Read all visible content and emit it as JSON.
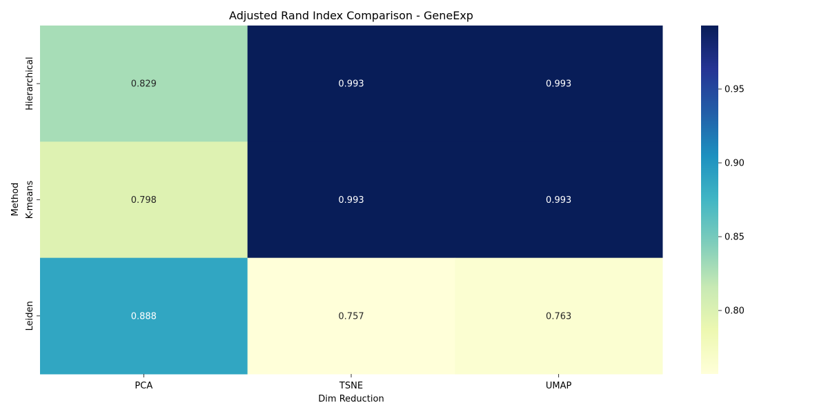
{
  "chart_data": {
    "type": "heatmap",
    "title": "Adjusted Rand Index Comparison - GeneExp",
    "xlabel": "Dim Reduction",
    "ylabel": "Method",
    "x_categories": [
      "PCA",
      "TSNE",
      "UMAP"
    ],
    "y_categories": [
      "Hierarchical",
      "K-means",
      "Leiden"
    ],
    "values": [
      [
        0.829,
        0.993,
        0.993
      ],
      [
        0.798,
        0.993,
        0.993
      ],
      [
        0.888,
        0.757,
        0.763
      ]
    ],
    "value_labels": [
      [
        "0.829",
        "0.993",
        "0.993"
      ],
      [
        "0.798",
        "0.993",
        "0.993"
      ],
      [
        "0.888",
        "0.757",
        "0.763"
      ]
    ],
    "colormap": "YlGnBu",
    "colorbar": {
      "range": [
        0.757,
        0.993
      ],
      "ticks": [
        0.8,
        0.85,
        0.9,
        0.95
      ],
      "tick_labels": [
        "0.80",
        "0.85",
        "0.90",
        "0.95"
      ]
    },
    "grid": false
  }
}
